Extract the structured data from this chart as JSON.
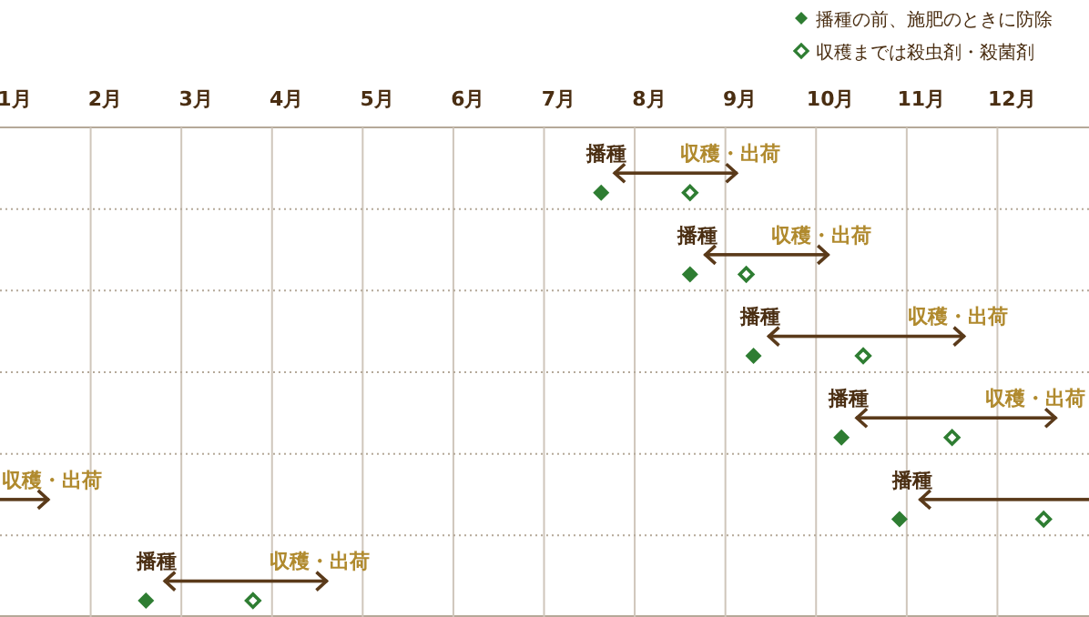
{
  "chart_data": {
    "type": "bar",
    "orientation": "horizontal",
    "categories": [
      null,
      null,
      null,
      null,
      null,
      null
    ],
    "xlim": [
      0.84,
      12.85
    ],
    "xticks": [
      {
        "value": 1,
        "label": "1月"
      },
      {
        "value": 2,
        "label": "2月"
      },
      {
        "value": 3,
        "label": "3月"
      },
      {
        "value": 4,
        "label": "4月"
      },
      {
        "value": 5,
        "label": "5月"
      },
      {
        "value": 6,
        "label": "6月"
      },
      {
        "value": 7,
        "label": "7月"
      },
      {
        "value": 8,
        "label": "8月"
      },
      {
        "value": 9,
        "label": "9月"
      },
      {
        "value": 10,
        "label": "10月"
      },
      {
        "value": 11,
        "label": "11月"
      },
      {
        "value": 12,
        "label": "12月"
      },
      {
        "value": 1.84,
        "label": null
      },
      {
        "value": 2.84,
        "label": null
      },
      {
        "value": 3.84,
        "label": null
      },
      {
        "value": 4.84,
        "label": null
      },
      {
        "value": 5.84,
        "label": null
      },
      {
        "value": 6.84,
        "label": null
      },
      {
        "value": 7.84,
        "label": null
      },
      {
        "value": 8.84,
        "label": null
      },
      {
        "value": 9.84,
        "label": null
      },
      {
        "value": 10.84,
        "label": null
      },
      {
        "value": 11.84,
        "label": null
      }
    ],
    "grid": "x",
    "legend": "top right",
    "series": [
      {
        "color": "#5a3a1a",
        "base": [
          7.61,
          8.61,
          9.31,
          10.28,
          10.98,
          2.65
        ],
        "values": [
          1.36,
          1.37,
          2.17,
          2.21,
          1.87,
          1.8
        ]
      },
      {
        "color": "#5a3a1a",
        "base": [
          null,
          null,
          null,
          null,
          0.84,
          null
        ],
        "values": [
          null,
          null,
          null,
          null,
          0.54,
          null
        ]
      },
      {
        "type": "scatter",
        "name": "播種の前、施肥のときに防除",
        "color": "#2e7d32",
        "marker": "diamond",
        "values": [
          7.47,
          8.45,
          9.15,
          10.12,
          10.76,
          2.45
        ]
      },
      {
        "type": "scatter",
        "name": "収穫までは殺虫剤・殺菌剤",
        "color": "#2e7d32",
        "marker": "diamond",
        "values": [
          8.45,
          9.07,
          10.36,
          11.34,
          12.35,
          3.63
        ]
      }
    ],
    "annotations": [
      "播種",
      "収穫・出荷",
      "播種",
      "収穫・出荷",
      "播種",
      "収穫・出荷",
      "播種",
      "収穫・出荷",
      "播種",
      "収穫・出荷",
      "播種",
      "収穫・出荷"
    ]
  }
}
